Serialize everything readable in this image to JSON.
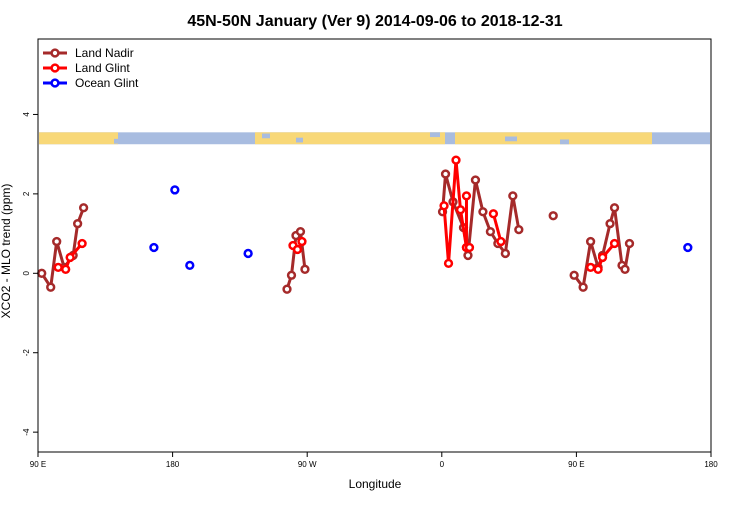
{
  "chart_data": {
    "type": "line",
    "title": "45N-50N January (Ver 9)   2014-09-06 to 2018-12-31",
    "xlabel": "Longitude",
    "ylabel": "XCO2 - MLO trend (ppm)",
    "xlim": [
      90,
      540
    ],
    "ylim": [
      -4.5,
      5.9
    ],
    "x_ticks": [
      {
        "value": 90,
        "label": "90 E"
      },
      {
        "value": 180,
        "label": "180"
      },
      {
        "value": 270,
        "label": "90 W"
      },
      {
        "value": 360,
        "label": "0"
      },
      {
        "value": 450,
        "label": "90 E"
      },
      {
        "value": 540,
        "label": "180"
      }
    ],
    "y_ticks": [
      {
        "value": -4,
        "label": "-4"
      },
      {
        "value": -2,
        "label": "-2"
      },
      {
        "value": 0,
        "label": "0"
      },
      {
        "value": 2,
        "label": "2"
      },
      {
        "value": 4,
        "label": "4"
      }
    ],
    "legend": {
      "position": "top-left",
      "entries": [
        {
          "name": "Land Nadir",
          "color": "#a52a2a"
        },
        {
          "name": "Land Glint",
          "color": "#ff0000"
        },
        {
          "name": "Ocean Glint",
          "color": "#0000ff"
        }
      ]
    },
    "map_band": {
      "y_range": [
        3.25,
        3.55
      ],
      "land_color": "#f8d878",
      "ocean_color": "#a8bce0"
    },
    "series": [
      {
        "name": "Land Nadir",
        "color": "#a52a2a",
        "segments": [
          {
            "x": [
              92.5,
              98.5,
              102.5,
              107.5,
              113.5,
              116.5,
              120.5
            ],
            "y": [
              0.0,
              -0.35,
              0.8,
              0.15,
              0.45,
              1.25,
              1.65
            ]
          },
          {
            "x": [
              256.5,
              259.5,
              262.5,
              265.5,
              268.5
            ],
            "y": [
              -0.4,
              -0.05,
              0.95,
              1.05,
              0.1
            ]
          },
          {
            "x": [
              360.5,
              362.5,
              367.5,
              374.5,
              377.5,
              382.5,
              387.5,
              392.5,
              397.5,
              402.5,
              407.5,
              411.5
            ],
            "y": [
              1.55,
              2.5,
              1.8,
              1.15,
              0.45,
              2.35,
              1.55,
              1.05,
              0.75,
              0.5,
              1.95,
              1.1
            ]
          },
          {
            "x": [
              448.5,
              454.5,
              459.5,
              464.5,
              467.5,
              472.5,
              475.5,
              480.5,
              482.5,
              485.5
            ],
            "y": [
              -0.05,
              -0.35,
              0.8,
              0.15,
              0.45,
              1.25,
              1.65,
              0.2,
              0.1,
              0.75
            ]
          }
        ],
        "points": [
          {
            "x": 434.5,
            "y": 1.45
          }
        ]
      },
      {
        "name": "Land Glint",
        "color": "#ff0000",
        "segments": [
          {
            "x": [
              103.5,
              108.5,
              111.5,
              119.5
            ],
            "y": [
              0.15,
              0.1,
              0.4,
              0.75
            ]
          },
          {
            "x": [
              260.5,
              263.5,
              266.5
            ],
            "y": [
              0.7,
              0.6,
              0.8
            ]
          },
          {
            "x": [
              361.5,
              364.5,
              369.5,
              372.5,
              376.5
            ],
            "y": [
              1.7,
              0.25,
              2.85,
              1.6,
              0.65
            ]
          },
          {
            "x": [
              376.5,
              376.5,
              378.5
            ],
            "y": [
              1.95,
              0.65,
              0.65
            ]
          },
          {
            "x": [
              394.5,
              399.5
            ],
            "y": [
              1.5,
              0.8
            ]
          },
          {
            "x": [
              459.5,
              464.5,
              467.5,
              475.5
            ],
            "y": [
              0.15,
              0.1,
              0.4,
              0.75
            ]
          }
        ],
        "points": []
      },
      {
        "name": "Ocean Glint",
        "color": "#0000ff",
        "segments": [],
        "points": [
          {
            "x": 167.5,
            "y": 0.65
          },
          {
            "x": 181.5,
            "y": 2.1
          },
          {
            "x": 191.5,
            "y": 0.2
          },
          {
            "x": 230.5,
            "y": 0.5
          },
          {
            "x": 524.5,
            "y": 0.65
          }
        ]
      }
    ]
  }
}
